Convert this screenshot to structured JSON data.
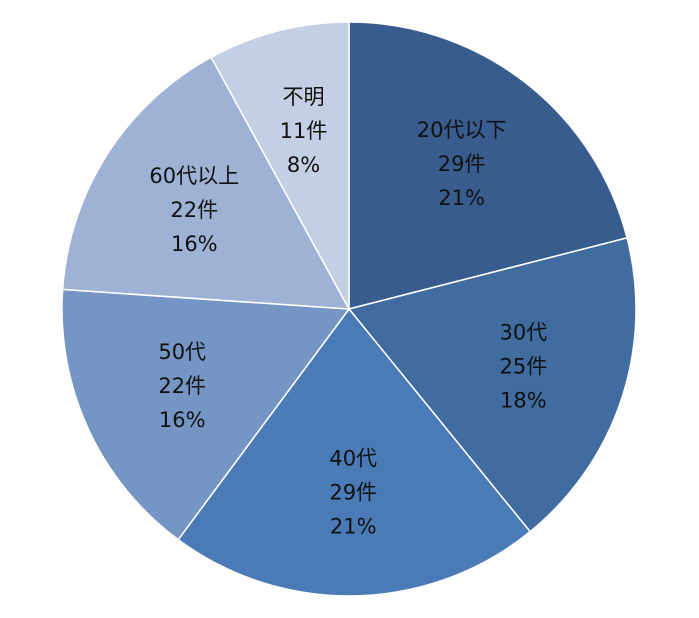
{
  "chart_data": {
    "type": "pie",
    "title": "",
    "start_angle_deg": 0,
    "direction": "clockwise",
    "slices": [
      {
        "label": "20代以下",
        "count_label": "29件",
        "percent_label": "21%",
        "value": 29,
        "color": "#375C8D"
      },
      {
        "label": "30代",
        "count_label": "25件",
        "percent_label": "18%",
        "value": 25,
        "color": "#416C9F"
      },
      {
        "label": "40代",
        "count_label": "29件",
        "percent_label": "21%",
        "value": 29,
        "color": "#4A7BB6"
      },
      {
        "label": "50代",
        "count_label": "22件",
        "percent_label": "16%",
        "value": 22,
        "color": "#7596C4"
      },
      {
        "label": "60代以上",
        "count_label": "22件",
        "percent_label": "16%",
        "value": 22,
        "color": "#9DB2D4"
      },
      {
        "label": "不明",
        "count_label": "11件",
        "percent_label": "8%",
        "value": 11,
        "color": "#C3CFE3"
      }
    ]
  }
}
